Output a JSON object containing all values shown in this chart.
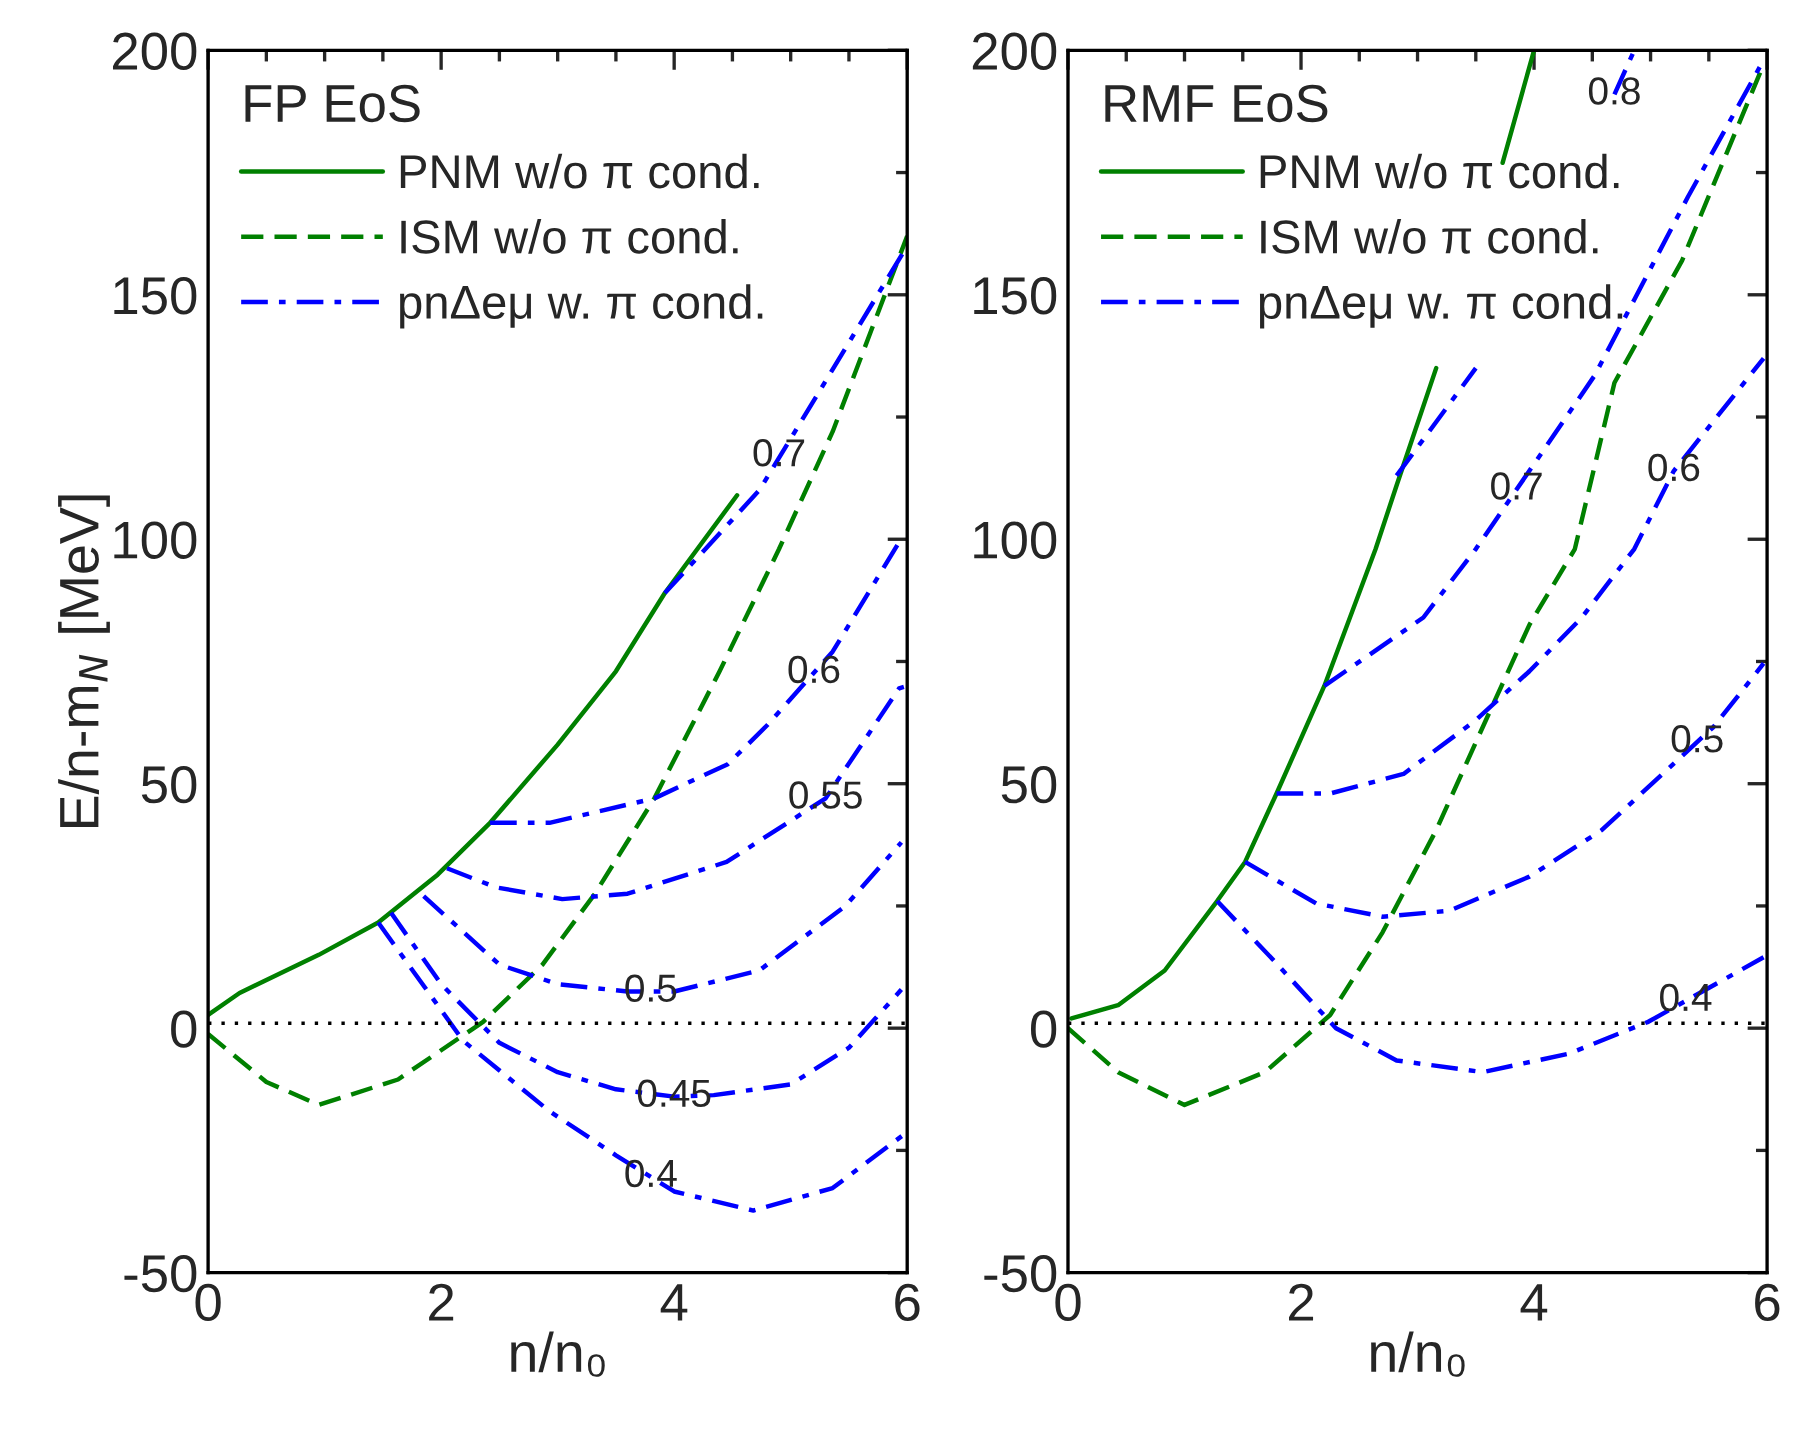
{
  "chart_data": [
    {
      "type": "line",
      "legend_title": "FP EoS",
      "xlabel": "n/n₀",
      "ylabel": "E/n-m$_{N}$ [MeV]",
      "legend": "top left",
      "grid": false,
      "xlim": [
        0,
        6
      ],
      "xticks": [
        0,
        {
          "value": 0.5,
          "label": null
        },
        {
          "value": 1,
          "label": null
        },
        {
          "value": 1.5,
          "label": null
        },
        2,
        {
          "value": 2.5,
          "label": null
        },
        {
          "value": 3,
          "label": null
        },
        {
          "value": 3.5,
          "label": null
        },
        4,
        {
          "value": 4.5,
          "label": null
        },
        {
          "value": 5,
          "label": null
        },
        {
          "value": 5.5,
          "label": null
        },
        6
      ],
      "ylim": [
        -50,
        200
      ],
      "yticks": [
        -50,
        {
          "value": -25,
          "label": null
        },
        0,
        {
          "value": 25,
          "label": null
        },
        50,
        {
          "value": 75,
          "label": null
        },
        100,
        {
          "value": 125,
          "label": null
        },
        150,
        {
          "value": 175,
          "label": null
        },
        200
      ],
      "ref_lines": [
        {
          "axis": "y",
          "value": 1,
          "color": "#000000",
          "line_style": "dotted"
        }
      ],
      "series": [
        {
          "name": "PNM w/o π cond.",
          "color": "#008000",
          "line_style": "solid",
          "x": [
            0,
            0.27,
            0.95,
            1.46,
            1.97,
            2.42,
            3.0,
            3.5,
            3.92,
            4.54
          ],
          "values": [
            2.7,
            7.2,
            15,
            21.6,
            31.4,
            42,
            58,
            73,
            89,
            109
          ]
        },
        {
          "name": "ISM w/o π cond.",
          "color": "#008000",
          "line_style": "dashed",
          "x": [
            0,
            0.5,
            0.95,
            1.63,
            2.36,
            2.87,
            3.32,
            3.83,
            4.39,
            4.9,
            5.36,
            6.0
          ],
          "values": [
            -1.2,
            -11,
            -15.7,
            -10.5,
            1.3,
            13,
            27.5,
            47,
            73,
            98,
            122,
            162
          ]
        },
        {
          "name": "pnΔeμ w. π cond.",
          "color": "#0000ff",
          "line_style": "dashdot",
          "x": [
            3.92,
            4.73,
            5.24,
            6.0
          ],
          "values": [
            89,
            110,
            130,
            160
          ]
        },
        {
          "color": "#0000ff",
          "line_style": "dashdot",
          "x": [
            2.42,
            2.93,
            3.83,
            4.46,
            4.8,
            5.36,
            5.92,
            6.0
          ],
          "values": [
            42,
            42,
            47,
            54,
            62,
            77,
            99,
            100
          ]
        },
        {
          "color": "#0000ff",
          "line_style": "dashdot",
          "x": [
            2.05,
            2.47,
            3.04,
            3.6,
            4.45,
            5.3,
            5.93,
            6.0
          ],
          "values": [
            32.7,
            28.8,
            26.4,
            27.5,
            34,
            47,
            69.5,
            70
          ]
        },
        {
          "color": "#0000ff",
          "line_style": "dashdot",
          "x": [
            1.85,
            2.5,
            3.0,
            3.6,
            4.0,
            4.73,
            5.47,
            5.95
          ],
          "values": [
            27,
            13,
            9,
            7.5,
            7.5,
            11.8,
            25,
            38
          ]
        },
        {
          "color": "#0000ff",
          "line_style": "dashdot",
          "x": [
            1.57,
            2.0,
            2.5,
            3.0,
            3.5,
            4.0,
            4.34,
            5.0,
            5.5,
            5.95
          ],
          "values": [
            23.6,
            9,
            -3,
            -9,
            -12.5,
            -14,
            -13.7,
            -11.5,
            -4,
            7.9
          ]
        },
        {
          "color": "#0000ff",
          "line_style": "dashdot",
          "x": [
            1.46,
            2.19,
            2.93,
            3.5,
            4.0,
            4.68,
            5.36,
            5.98
          ],
          "values": [
            21.6,
            -2.6,
            -17,
            -26,
            -33.4,
            -37.3,
            -32.7,
            -21.6
          ]
        }
      ],
      "annotations": [
        {
          "text": "0.7",
          "x": 4.9,
          "y": 117
        },
        {
          "text": "0.6",
          "x": 5.2,
          "y": 72.7
        },
        {
          "text": "0.55",
          "x": 5.3,
          "y": 47
        },
        {
          "text": "0.5",
          "x": 3.8,
          "y": 7.5
        },
        {
          "text": "0.45",
          "x": 4.0,
          "y": -14
        },
        {
          "text": "0.4",
          "x": 3.8,
          "y": -30.4
        }
      ]
    },
    {
      "type": "line",
      "legend_title": "RMF EoS",
      "xlabel": "n/n₀",
      "legend": "top left",
      "grid": false,
      "xlim": [
        0,
        6
      ],
      "xticks": [
        0,
        {
          "value": 0.5,
          "label": null
        },
        {
          "value": 1,
          "label": null
        },
        {
          "value": 1.5,
          "label": null
        },
        2,
        {
          "value": 2.5,
          "label": null
        },
        {
          "value": 3,
          "label": null
        },
        {
          "value": 3.5,
          "label": null
        },
        4,
        {
          "value": 4.5,
          "label": null
        },
        {
          "value": 5,
          "label": null
        },
        {
          "value": 5.5,
          "label": null
        },
        6
      ],
      "ylim": [
        -50,
        200
      ],
      "yticks": [
        -50,
        {
          "value": -25,
          "label": null
        },
        0,
        {
          "value": 25,
          "label": null
        },
        50,
        {
          "value": 75,
          "label": null
        },
        100,
        {
          "value": 125,
          "label": null
        },
        150,
        {
          "value": 175,
          "label": null
        },
        200
      ],
      "ref_lines": [
        {
          "axis": "y",
          "value": 1,
          "color": "#000000",
          "line_style": "dotted"
        }
      ],
      "series": [
        {
          "name": "PNM w/o π cond.",
          "color": "#008000",
          "line_style": "solid",
          "x": [
            0.03,
            0.43,
            0.83,
            1.28,
            1.52,
            1.79,
            2.2,
            2.64,
            2.82,
            3.16,
            3.4,
            3.73,
            4.0
          ],
          "values": [
            2,
            4.7,
            11.8,
            26,
            34,
            48,
            70,
            98,
            111,
            135,
            null,
            177,
            200
          ]
        },
        {
          "name": "ISM w/o π cond.",
          "color": "#008000",
          "line_style": "dashed",
          "x": [
            0,
            0.43,
            1.0,
            1.69,
            2.25,
            2.7,
            3.16,
            3.56,
            3.96,
            4.35,
            4.69,
            5.27,
            5.95
          ],
          "values": [
            0,
            -9,
            -15.7,
            -9,
            2.7,
            19.6,
            40.5,
            61.6,
            82.5,
            98,
            132,
            157,
            196
          ]
        },
        {
          "name": "pnΔeμ w. π cond.",
          "color": "#0000ff",
          "line_style": "dashdot",
          "x": [
            2.82,
            3.5,
            4.1,
            4.69,
            4.86
          ],
          "values": [
            113,
            135,
            null,
            191,
            200
          ]
        },
        {
          "color": "#0000ff",
          "line_style": "dashdot",
          "x": [
            2.2,
            3.05,
            3.5,
            3.96,
            4.52,
            4.86,
            5.32,
            5.97
          ],
          "values": [
            70,
            84,
            98,
            114,
            133.5,
            149,
            170,
            198
          ]
        },
        {
          "color": "#0000ff",
          "line_style": "dashdot",
          "x": [
            1.79,
            2.25,
            2.88,
            3.5,
            3.96,
            4.41,
            4.86,
            5.2,
            5.97
          ],
          "values": [
            48,
            48,
            52,
            63,
            73,
            84,
            98,
            114,
            137
          ]
        },
        {
          "color": "#0000ff",
          "line_style": "dashdot",
          "x": [
            1.52,
            2.13,
            2.7,
            3.27,
            3.96,
            4.58,
            5.54,
            5.97
          ],
          "values": [
            34,
            25.5,
            22.8,
            24,
            31,
            40.5,
            61.6,
            74.6
          ]
        },
        {
          "color": "#0000ff",
          "line_style": "dashdot",
          "x": [
            1.28,
            1.74,
            2.3,
            2.82,
            3.56,
            4.3,
            4.98,
            5.97
          ],
          "values": [
            26,
            14.5,
            0,
            -6.6,
            -9,
            -5.2,
            1.3,
            14.5
          ]
        }
      ],
      "annotations": [
        {
          "text": "0.8",
          "x": 4.69,
          "y": 191
        },
        {
          "text": "0.7",
          "x": 3.85,
          "y": 110.2
        },
        {
          "text": "0.6",
          "x": 5.2,
          "y": 114
        },
        {
          "text": "0.5",
          "x": 5.4,
          "y": 58.5
        },
        {
          "text": "0.4",
          "x": 5.3,
          "y": 5.6
        }
      ]
    }
  ]
}
